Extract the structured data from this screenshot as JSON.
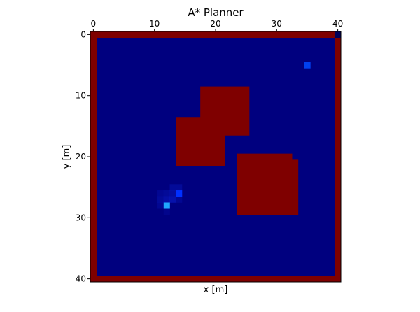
{
  "chart_data": {
    "type": "heatmap",
    "title": "A* Planner",
    "xlabel": "x [m]",
    "ylabel": "y [m]",
    "xlim": [
      0,
      40
    ],
    "ylim": [
      0,
      40
    ],
    "y_inverted": true,
    "x_axis_position": "top",
    "xticks": [
      0,
      10,
      20,
      30,
      40
    ],
    "yticks": [
      0,
      10,
      20,
      30,
      40
    ],
    "grid": false,
    "colors": {
      "free": "#00007f",
      "obstacle": "#7f0000",
      "cost_light": "#0018c8",
      "cost_medium": "#0010a8"
    },
    "obstacles": [
      {
        "name": "boundary-top",
        "x": 0,
        "y": 0,
        "w": 41,
        "h": 1
      },
      {
        "name": "boundary-bottom",
        "x": 0,
        "y": 40,
        "w": 41,
        "h": 1
      },
      {
        "name": "boundary-left",
        "x": 0,
        "y": 0,
        "w": 1,
        "h": 41
      },
      {
        "name": "boundary-right",
        "x": 40,
        "y": 1,
        "w": 1,
        "h": 40
      },
      {
        "name": "block-upper",
        "x": 18,
        "y": 9,
        "w": 8,
        "h": 8
      },
      {
        "name": "block-left",
        "x": 14,
        "y": 14,
        "w": 8,
        "h": 8
      },
      {
        "name": "block-lower-main",
        "x": 24,
        "y": 20,
        "w": 9,
        "h": 10
      },
      {
        "name": "block-lower-ext",
        "x": 33,
        "y": 21,
        "w": 1,
        "h": 9
      }
    ],
    "explored_cells": [
      {
        "x": 11,
        "y": 26,
        "level": 0.15
      },
      {
        "x": 12,
        "y": 26,
        "level": 0.2
      },
      {
        "x": 13,
        "y": 26,
        "level": 0.25
      },
      {
        "x": 12,
        "y": 27,
        "level": 0.3
      },
      {
        "x": 13,
        "y": 27,
        "level": 0.35
      },
      {
        "x": 11,
        "y": 27,
        "level": 0.2
      },
      {
        "x": 13,
        "y": 25,
        "level": 0.2
      },
      {
        "x": 14,
        "y": 25,
        "level": 0.2
      },
      {
        "x": 11,
        "y": 28,
        "level": 0.15
      },
      {
        "x": 12,
        "y": 29,
        "level": 0.1
      },
      {
        "x": 14,
        "y": 27,
        "level": 0.15
      }
    ],
    "start": {
      "x": 12,
      "y": 28,
      "color": "#20a8ff"
    },
    "current": {
      "x": 14,
      "y": 26,
      "color": "#0030ff"
    },
    "goal": {
      "x": 35,
      "y": 5,
      "color": "#0040f0"
    },
    "corner_cell": {
      "x": 40,
      "y": 0,
      "color": "#00005a"
    }
  }
}
